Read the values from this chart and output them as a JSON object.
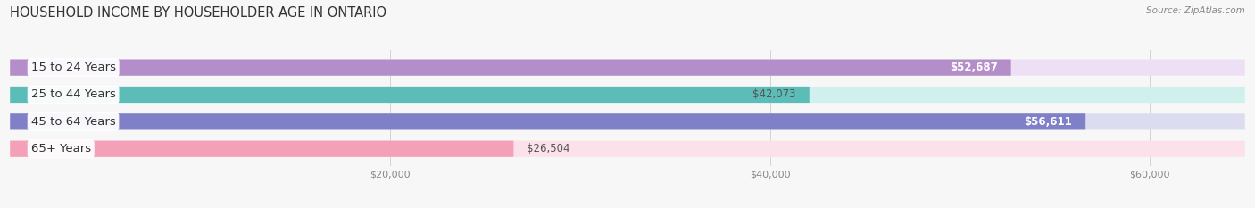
{
  "title": "HOUSEHOLD INCOME BY HOUSEHOLDER AGE IN ONTARIO",
  "source": "Source: ZipAtlas.com",
  "categories": [
    "15 to 24 Years",
    "25 to 44 Years",
    "45 to 64 Years",
    "65+ Years"
  ],
  "values": [
    52687,
    42073,
    56611,
    26504
  ],
  "bar_colors": [
    "#b48ec8",
    "#5bbcb8",
    "#8080c8",
    "#f4a0b8"
  ],
  "bar_bg_colors": [
    "#ede0f4",
    "#d0f0ee",
    "#dcdcf0",
    "#fce0ea"
  ],
  "label_colors": [
    "#ffffff",
    "#555555",
    "#ffffff",
    "#555555"
  ],
  "value_labels": [
    "$52,687",
    "$42,073",
    "$56,611",
    "$26,504"
  ],
  "xlim": [
    0,
    65000
  ],
  "xticks": [
    20000,
    40000,
    60000
  ],
  "xticklabels": [
    "$20,000",
    "$40,000",
    "$60,000"
  ],
  "background_color": "#f7f7f7",
  "bar_height": 0.6,
  "title_fontsize": 10.5,
  "label_fontsize": 9.5,
  "value_fontsize": 8.5,
  "tick_fontsize": 8,
  "source_fontsize": 7.5
}
